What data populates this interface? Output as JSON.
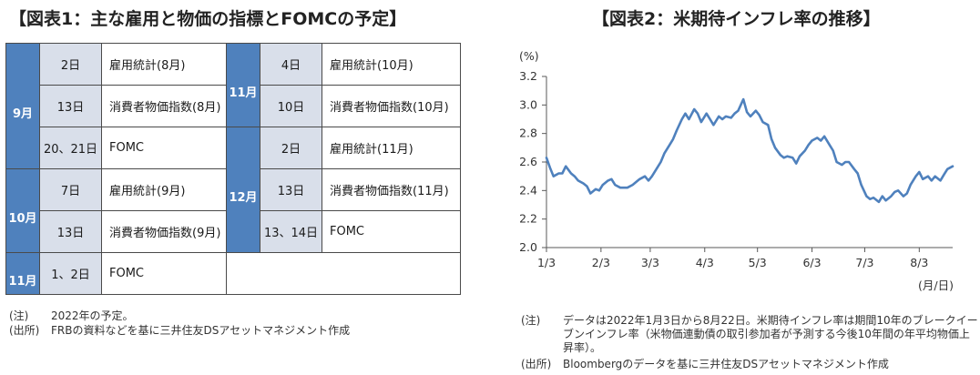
{
  "left_title": "【図表1：主な雇用と物価の指標とFOMCの予定】",
  "right_title": "【図表2：米期待インフレ率の推移】",
  "schedule": {
    "left": [
      {
        "month": "9月",
        "rows": [
          {
            "day": "2日",
            "event": "雇用統計(8月)"
          },
          {
            "day": "13日",
            "event": "消費者物価指数(8月)"
          },
          {
            "day": "20、21日",
            "event": "FOMC"
          }
        ]
      },
      {
        "month": "10月",
        "rows": [
          {
            "day": "7日",
            "event": "雇用統計(9月)"
          },
          {
            "day": "13日",
            "event": "消費者物価指数(9月)"
          }
        ]
      },
      {
        "month": "11月",
        "rows": [
          {
            "day": "1、2日",
            "event": "FOMC"
          }
        ]
      }
    ],
    "right": [
      {
        "month": "11月",
        "rows": [
          {
            "day": "4日",
            "event": "雇用統計(10月)"
          },
          {
            "day": "10日",
            "event": "消費者物価指数(10月)"
          }
        ]
      },
      {
        "month": "12月",
        "rows": [
          {
            "day": "2日",
            "event": "雇用統計(11月)"
          },
          {
            "day": "13日",
            "event": "消費者物価指数(11月)"
          },
          {
            "day": "13、14日",
            "event": "FOMC"
          }
        ]
      }
    ]
  },
  "notes_left": [
    {
      "label": "(注)",
      "text": "2022年の予定。"
    },
    {
      "label": "(出所)",
      "text": "FRBの資料などを基に三井住友DSアセットマネジメント作成"
    }
  ],
  "notes_right": [
    {
      "label": "(注)",
      "text": "データは2022年1月3日から8月22日。米期待インフレ率は期間10年のブレークイーブンインフレ率（米物価連動債の取引参加者が予測する今後10年間の年平均物価上昇率）。"
    },
    {
      "label": "(出所)",
      "text": "Bloombergのデータを基に三井住友DSアセットマネジメント作成"
    }
  ],
  "chart_data": {
    "type": "line",
    "title": "【図表2：米期待インフレ率の推移】",
    "ylabel": "(%)",
    "xlabel": "(月/日)",
    "ylim": [
      2.0,
      3.2
    ],
    "yticks": [
      "2.0",
      "2.2",
      "2.4",
      "2.6",
      "2.8",
      "3.0",
      "3.2"
    ],
    "xlim": [
      "2022-01-03",
      "2022-08-22"
    ],
    "xticks": [
      {
        "date": "2022-01-03",
        "label": "1/3"
      },
      {
        "date": "2022-02-03",
        "label": "2/3"
      },
      {
        "date": "2022-03-03",
        "label": "3/3"
      },
      {
        "date": "2022-04-03",
        "label": "4/3"
      },
      {
        "date": "2022-05-03",
        "label": "5/3"
      },
      {
        "date": "2022-06-03",
        "label": "6/3"
      },
      {
        "date": "2022-07-03",
        "label": "7/3"
      },
      {
        "date": "2022-08-03",
        "label": "8/3"
      }
    ],
    "grid": false,
    "color": "#4f81bd",
    "series": [
      {
        "points": [
          [
            "2022-01-03",
            2.63
          ],
          [
            "2022-01-05",
            2.56
          ],
          [
            "2022-01-07",
            2.5
          ],
          [
            "2022-01-10",
            2.52
          ],
          [
            "2022-01-12",
            2.52
          ],
          [
            "2022-01-14",
            2.57
          ],
          [
            "2022-01-17",
            2.52
          ],
          [
            "2022-01-19",
            2.5
          ],
          [
            "2022-01-21",
            2.47
          ],
          [
            "2022-01-24",
            2.45
          ],
          [
            "2022-01-26",
            2.43
          ],
          [
            "2022-01-28",
            2.38
          ],
          [
            "2022-01-31",
            2.41
          ],
          [
            "2022-02-02",
            2.4
          ],
          [
            "2022-02-04",
            2.44
          ],
          [
            "2022-02-07",
            2.47
          ],
          [
            "2022-02-09",
            2.48
          ],
          [
            "2022-02-11",
            2.44
          ],
          [
            "2022-02-14",
            2.42
          ],
          [
            "2022-02-16",
            2.42
          ],
          [
            "2022-02-18",
            2.42
          ],
          [
            "2022-02-21",
            2.44
          ],
          [
            "2022-02-23",
            2.46
          ],
          [
            "2022-02-25",
            2.48
          ],
          [
            "2022-02-28",
            2.5
          ],
          [
            "2022-03-02",
            2.47
          ],
          [
            "2022-03-04",
            2.5
          ],
          [
            "2022-03-07",
            2.56
          ],
          [
            "2022-03-09",
            2.6
          ],
          [
            "2022-03-11",
            2.66
          ],
          [
            "2022-03-14",
            2.72
          ],
          [
            "2022-03-16",
            2.76
          ],
          [
            "2022-03-18",
            2.82
          ],
          [
            "2022-03-21",
            2.9
          ],
          [
            "2022-03-23",
            2.94
          ],
          [
            "2022-03-25",
            2.9
          ],
          [
            "2022-03-28",
            2.97
          ],
          [
            "2022-03-30",
            2.94
          ],
          [
            "2022-04-01",
            2.88
          ],
          [
            "2022-04-04",
            2.94
          ],
          [
            "2022-04-06",
            2.9
          ],
          [
            "2022-04-08",
            2.86
          ],
          [
            "2022-04-11",
            2.92
          ],
          [
            "2022-04-13",
            2.9
          ],
          [
            "2022-04-15",
            2.92
          ],
          [
            "2022-04-18",
            2.91
          ],
          [
            "2022-04-20",
            2.94
          ],
          [
            "2022-04-22",
            2.96
          ],
          [
            "2022-04-25",
            3.04
          ],
          [
            "2022-04-27",
            2.95
          ],
          [
            "2022-04-29",
            2.92
          ],
          [
            "2022-05-02",
            2.96
          ],
          [
            "2022-05-04",
            2.93
          ],
          [
            "2022-05-06",
            2.88
          ],
          [
            "2022-05-09",
            2.86
          ],
          [
            "2022-05-11",
            2.76
          ],
          [
            "2022-05-13",
            2.7
          ],
          [
            "2022-05-16",
            2.65
          ],
          [
            "2022-05-18",
            2.63
          ],
          [
            "2022-05-20",
            2.64
          ],
          [
            "2022-05-23",
            2.63
          ],
          [
            "2022-05-25",
            2.59
          ],
          [
            "2022-05-27",
            2.64
          ],
          [
            "2022-05-30",
            2.68
          ],
          [
            "2022-06-01",
            2.72
          ],
          [
            "2022-06-03",
            2.75
          ],
          [
            "2022-06-06",
            2.77
          ],
          [
            "2022-06-08",
            2.75
          ],
          [
            "2022-06-10",
            2.78
          ],
          [
            "2022-06-13",
            2.72
          ],
          [
            "2022-06-15",
            2.68
          ],
          [
            "2022-06-17",
            2.6
          ],
          [
            "2022-06-20",
            2.58
          ],
          [
            "2022-06-22",
            2.6
          ],
          [
            "2022-06-24",
            2.6
          ],
          [
            "2022-06-27",
            2.55
          ],
          [
            "2022-06-29",
            2.52
          ],
          [
            "2022-07-01",
            2.44
          ],
          [
            "2022-07-04",
            2.36
          ],
          [
            "2022-07-06",
            2.34
          ],
          [
            "2022-07-08",
            2.35
          ],
          [
            "2022-07-11",
            2.32
          ],
          [
            "2022-07-13",
            2.36
          ],
          [
            "2022-07-15",
            2.33
          ],
          [
            "2022-07-18",
            2.36
          ],
          [
            "2022-07-20",
            2.39
          ],
          [
            "2022-07-22",
            2.4
          ],
          [
            "2022-07-25",
            2.36
          ],
          [
            "2022-07-27",
            2.38
          ],
          [
            "2022-07-29",
            2.44
          ],
          [
            "2022-08-01",
            2.5
          ],
          [
            "2022-08-03",
            2.53
          ],
          [
            "2022-08-05",
            2.48
          ],
          [
            "2022-08-08",
            2.5
          ],
          [
            "2022-08-10",
            2.47
          ],
          [
            "2022-08-12",
            2.5
          ],
          [
            "2022-08-15",
            2.47
          ],
          [
            "2022-08-17",
            2.51
          ],
          [
            "2022-08-19",
            2.55
          ],
          [
            "2022-08-22",
            2.57
          ]
        ]
      }
    ]
  }
}
